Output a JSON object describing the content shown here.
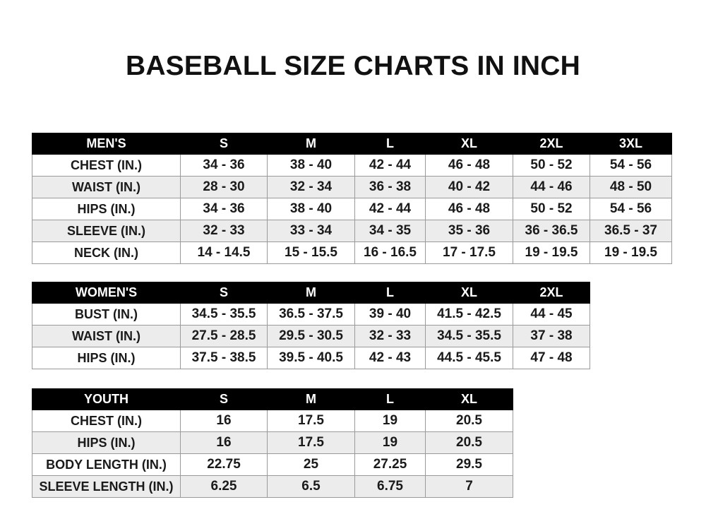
{
  "title": "BASEBALL SIZE CHARTS IN INCH",
  "tables": [
    {
      "name": "mens",
      "header": [
        "MEN'S",
        "S",
        "M",
        "L",
        "XL",
        "2XL",
        "3XL"
      ],
      "rows": [
        [
          "CHEST (IN.)",
          "34 - 36",
          "38 - 40",
          "42 - 44",
          "46 - 48",
          "50 - 52",
          "54 - 56"
        ],
        [
          "WAIST (IN.)",
          "28 - 30",
          "32 - 34",
          "36 - 38",
          "40 - 42",
          "44 - 46",
          "48 - 50"
        ],
        [
          "HIPS (IN.)",
          "34 - 36",
          "38 - 40",
          "42 - 44",
          "46 - 48",
          "50 - 52",
          "54 - 56"
        ],
        [
          "SLEEVE (IN.)",
          "32 - 33",
          "33 - 34",
          "34 - 35",
          "35 - 36",
          "36 - 36.5",
          "36.5 - 37"
        ],
        [
          "NECK (IN.)",
          "14 - 14.5",
          "15 - 15.5",
          "16 - 16.5",
          "17 - 17.5",
          "19 - 19.5",
          "19 - 19.5"
        ]
      ]
    },
    {
      "name": "womens",
      "header": [
        "WOMEN'S",
        "S",
        "M",
        "L",
        "XL",
        "2XL"
      ],
      "rows": [
        [
          "BUST (IN.)",
          "34.5 - 35.5",
          "36.5 - 37.5",
          "39 - 40",
          "41.5 - 42.5",
          "44 - 45"
        ],
        [
          "WAIST (IN.)",
          "27.5 - 28.5",
          "29.5 - 30.5",
          "32 - 33",
          "34.5 - 35.5",
          "37 - 38"
        ],
        [
          "HIPS (IN.)",
          "37.5 - 38.5",
          "39.5 - 40.5",
          "42 - 43",
          "44.5 - 45.5",
          "47 - 48"
        ]
      ]
    },
    {
      "name": "youth",
      "header": [
        "YOUTH",
        "S",
        "M",
        "L",
        "XL"
      ],
      "rows": [
        [
          "CHEST (IN.)",
          "16",
          "17.5",
          "19",
          "20.5"
        ],
        [
          "HIPS (IN.)",
          "16",
          "17.5",
          "19",
          "20.5"
        ],
        [
          "BODY LENGTH (IN.)",
          "22.75",
          "25",
          "27.25",
          "29.5"
        ],
        [
          "SLEEVE LENGTH (IN.)",
          "6.25",
          "6.5",
          "6.75",
          "7"
        ]
      ]
    }
  ]
}
